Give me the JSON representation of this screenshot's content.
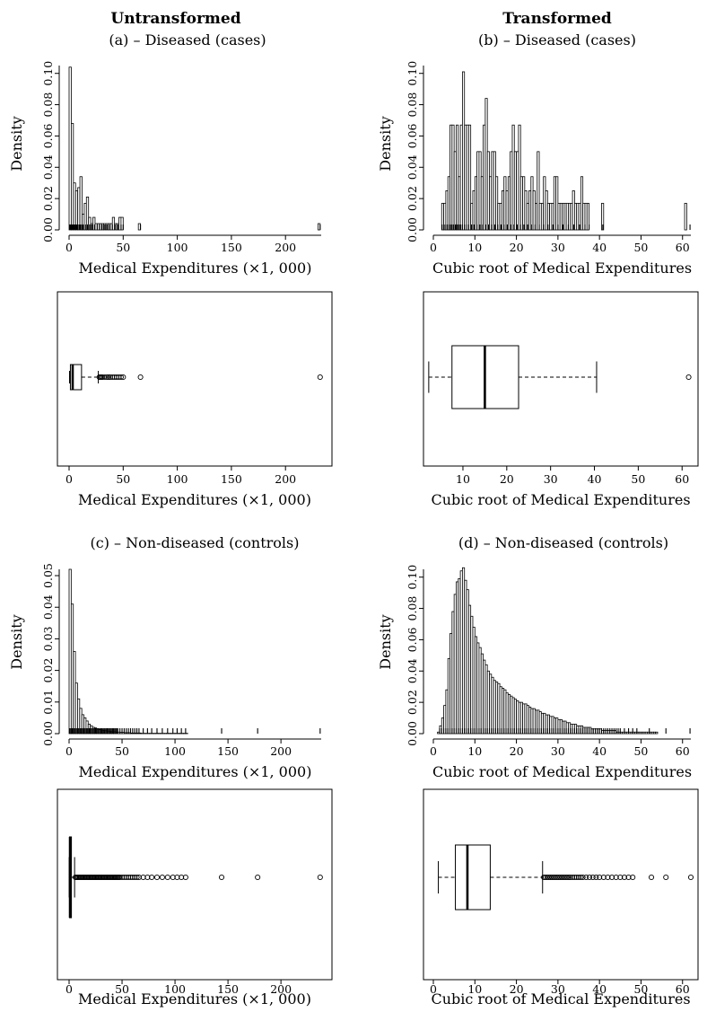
{
  "columns": {
    "left_title": "Untransformed",
    "right_title": "Transformed"
  },
  "panel_titles": {
    "a": "(a) – Diseased (cases)",
    "b": "(b) – Diseased (cases)",
    "c": "(c) – Non-diseased (controls)",
    "d": "(d) – Non-diseased (controls)"
  },
  "chart_data": [
    {
      "id": "a-hist",
      "type": "bar",
      "panel": "(a) – Diseased (cases)",
      "xlabel": "Medical Expenditures (×1, 000)",
      "ylabel": "Density",
      "xlim": [
        0,
        233
      ],
      "ylim": [
        0,
        0.105
      ],
      "xticks": [
        "0",
        "50",
        "100",
        "150",
        "200"
      ],
      "yticks": [
        "0.00",
        "0.02",
        "0.04",
        "0.06",
        "0.08",
        "0.10"
      ],
      "bin_start": 0,
      "bin_width": 2,
      "values": [
        0.104,
        0.068,
        0.03,
        0.025,
        0.027,
        0.034,
        0.01,
        0.017,
        0.021,
        0.008,
        0.004,
        0.008,
        0.004,
        0.004,
        0.004,
        0.004,
        0.004,
        0.004,
        0.004,
        0.004,
        0.008,
        0.004,
        0.004,
        0.008,
        0.008,
        0,
        0,
        0,
        0,
        0,
        0,
        0,
        0.004,
        0,
        0,
        0,
        0,
        0,
        0,
        0,
        0,
        0,
        0,
        0,
        0,
        0,
        0,
        0,
        0,
        0,
        0,
        0,
        0,
        0,
        0,
        0,
        0,
        0,
        0,
        0,
        0,
        0,
        0,
        0,
        0,
        0,
        0,
        0,
        0,
        0,
        0,
        0,
        0,
        0,
        0,
        0,
        0,
        0,
        0,
        0,
        0,
        0,
        0,
        0,
        0,
        0,
        0,
        0,
        0,
        0,
        0,
        0,
        0,
        0,
        0,
        0,
        0,
        0,
        0,
        0,
        0,
        0,
        0,
        0,
        0,
        0,
        0,
        0,
        0,
        0,
        0,
        0,
        0,
        0,
        0,
        0.004
      ],
      "rug": [
        0.5,
        1,
        1.3,
        1.8,
        2.2,
        2.7,
        3.1,
        3.6,
        4.2,
        4.8,
        5.5,
        6.3,
        7.1,
        8.0,
        9.2,
        10.4,
        11.5,
        12.8,
        14.0,
        15.5,
        17.0,
        19.0,
        21.0,
        23.5,
        26.0,
        28.0,
        30.5,
        33.0,
        35.0,
        37.5,
        40.0,
        42.5,
        45.0,
        48.0,
        50.0,
        66.0,
        232.0
      ]
    },
    {
      "id": "a-box",
      "type": "box",
      "xlabel": "Medical Expenditures (×1, 000)",
      "xlim": [
        0,
        233
      ],
      "xticks": [
        "0",
        "50",
        "100",
        "150",
        "200"
      ],
      "stats": {
        "whisker_low": 0.4,
        "q1": 1.2,
        "median": 3.3,
        "q3": 11.5,
        "whisker_high": 27
      },
      "outliers": [
        28,
        29,
        30,
        31,
        33,
        35,
        36.5,
        38,
        40,
        42,
        44,
        46,
        48,
        50,
        66,
        232
      ]
    },
    {
      "id": "b-hist",
      "type": "bar",
      "panel": "(b) – Diseased (cases)",
      "xlabel": "Cubic root of Medical Expenditures",
      "ylabel": "Density",
      "xlim": [
        0,
        62
      ],
      "ylim": [
        0,
        0.105
      ],
      "xticks": [
        "0",
        "10",
        "20",
        "30",
        "40",
        "50",
        "60"
      ],
      "yticks": [
        "0.00",
        "0.02",
        "0.04",
        "0.06",
        "0.08",
        "0.10"
      ],
      "bin_start": 2,
      "bin_width": 0.5,
      "values": [
        0.017,
        0.017,
        0.025,
        0.034,
        0.067,
        0.067,
        0.05,
        0.067,
        0.034,
        0.067,
        0.101,
        0.067,
        0.067,
        0.067,
        0.017,
        0.025,
        0.034,
        0.05,
        0.05,
        0.034,
        0.067,
        0.084,
        0.05,
        0.034,
        0.05,
        0.05,
        0.034,
        0.017,
        0.017,
        0.025,
        0.034,
        0.025,
        0.034,
        0.05,
        0.067,
        0.05,
        0.05,
        0.067,
        0.034,
        0.034,
        0.025,
        0.017,
        0.025,
        0.034,
        0.025,
        0.017,
        0.05,
        0.017,
        0.017,
        0.034,
        0.025,
        0.017,
        0.017,
        0.017,
        0.034,
        0.034,
        0.017,
        0.017,
        0.017,
        0.017,
        0.017,
        0.017,
        0.017,
        0.025,
        0.017,
        0.017,
        0.017,
        0.034,
        0.017,
        0.017,
        0.017,
        0,
        0,
        0,
        0,
        0,
        0,
        0.017,
        0,
        0,
        0,
        0,
        0,
        0,
        0,
        0,
        0,
        0,
        0,
        0,
        0,
        0,
        0,
        0,
        0,
        0,
        0,
        0,
        0,
        0,
        0,
        0,
        0,
        0,
        0,
        0,
        0,
        0,
        0,
        0,
        0,
        0,
        0,
        0,
        0,
        0,
        0,
        0.017
      ],
      "rug": [
        2.1,
        2.6,
        3.0,
        3.4,
        3.9,
        4.3,
        4.8,
        5.3,
        5.7,
        6.2,
        6.6,
        7.0,
        7.5,
        8.0,
        8.5,
        9.2,
        9.8,
        10.5,
        11.2,
        11.9,
        12.6,
        13.3,
        14.0,
        14.8,
        15.5,
        16.3,
        17.0,
        17.8,
        18.6,
        19.4,
        20.2,
        21.0,
        21.8,
        22.7,
        23.6,
        24.5,
        25.5,
        26.5,
        27.6,
        28.8,
        30.0,
        31.2,
        32.5,
        33.8,
        35.2,
        36.5,
        37.5,
        40.8,
        61.8
      ]
    },
    {
      "id": "b-box",
      "type": "box",
      "xlabel": "Cubic root of Medical Expenditures",
      "xlim": [
        1,
        62
      ],
      "xticks": [
        "10",
        "20",
        "30",
        "40",
        "50",
        "60"
      ],
      "stats": {
        "whisker_low": 2.2,
        "q1": 7.5,
        "median": 15,
        "q3": 22.7,
        "whisker_high": 40.5
      },
      "outliers": [
        61.5
      ]
    },
    {
      "id": "c-hist",
      "type": "bar",
      "panel": "(c) – Non-diseased (controls)",
      "xlabel": "Medical Expenditures (×1, 000)",
      "ylabel": "Density",
      "xlim": [
        0,
        238
      ],
      "ylim": [
        0,
        0.052
      ],
      "xticks": [
        "0",
        "50",
        "100",
        "150",
        "200"
      ],
      "yticks": [
        "0.00",
        "0.01",
        "0.02",
        "0.03",
        "0.04",
        "0.05"
      ],
      "bin_start": 0,
      "bin_width": 2,
      "values": [
        0.052,
        0.041,
        0.026,
        0.016,
        0.011,
        0.008,
        0.006,
        0.005,
        0.004,
        0.003,
        0.0025,
        0.002,
        0.0018,
        0.0015,
        0.0013,
        0.0011,
        0.001,
        0.0009,
        0.0008,
        0.0007,
        0.0006,
        0.0006,
        0.0005,
        0.0005,
        0.0004,
        0.0004,
        0.0003,
        0.0003,
        0.0003,
        0.0002,
        0.0002,
        0.0002,
        0.0002,
        0.0002,
        0.0001,
        0.0001,
        0.0001,
        0.0001,
        0.0001,
        0.0001,
        0.0001,
        0.0001,
        0.0001,
        0.0001,
        0.0001,
        0.0001,
        0.0001,
        0.0001,
        0.0001,
        0.0001,
        0.0001,
        0.0001,
        0.0001,
        0.0001,
        0.0001,
        0.0001
      ],
      "rug": [
        0.5,
        1,
        2,
        3,
        4,
        5,
        6,
        7,
        8,
        9,
        10,
        11,
        12,
        13,
        14,
        15,
        16,
        17,
        18,
        19,
        20,
        21,
        22,
        23,
        24,
        25,
        26,
        27,
        28,
        29,
        30,
        31,
        32,
        33,
        34,
        35,
        36,
        37,
        38,
        39,
        40,
        41,
        42,
        43,
        44,
        45,
        46,
        48,
        50,
        52,
        54,
        56,
        58,
        60,
        62,
        64,
        66,
        70,
        74,
        78,
        83,
        88,
        93,
        98,
        102,
        106,
        110,
        144,
        178,
        237
      ]
    },
    {
      "id": "c-box",
      "type": "box",
      "xlabel": "Medical Expenditures (×1, 000)",
      "xlim": [
        0,
        238
      ],
      "xticks": [
        "0",
        "50",
        "100",
        "150",
        "200"
      ],
      "stats": {
        "whisker_low": 0.1,
        "q1": 0.4,
        "median": 0.9,
        "q3": 2.2,
        "whisker_high": 5.2
      },
      "outliers": [
        6,
        7,
        8,
        9,
        10,
        11,
        12,
        13,
        14,
        15,
        16,
        17,
        18,
        19,
        20,
        21,
        22,
        23,
        24,
        25,
        26,
        27,
        28,
        29,
        30,
        31,
        32,
        33,
        34,
        35,
        36,
        37,
        38,
        39,
        40,
        41,
        42,
        43,
        44,
        45,
        46,
        47,
        48,
        50,
        52,
        54,
        56,
        58,
        60,
        62,
        64,
        66,
        70,
        74,
        78,
        83,
        88,
        93,
        98,
        102,
        106,
        110,
        144,
        178,
        237
      ]
    },
    {
      "id": "d-hist",
      "type": "bar",
      "panel": "(d) – Non-diseased (controls)",
      "xlabel": "Cubic root of Medical Expenditures",
      "ylabel": "Density",
      "xlim": [
        0,
        62
      ],
      "ylim": [
        0,
        0.105
      ],
      "xticks": [
        "0",
        "10",
        "20",
        "30",
        "40",
        "50",
        "60"
      ],
      "yticks": [
        "0.00",
        "0.02",
        "0.04",
        "0.06",
        "0.08",
        "0.10"
      ],
      "bin_start": 1,
      "bin_width": 0.5,
      "values": [
        0.001,
        0.005,
        0.01,
        0.018,
        0.028,
        0.048,
        0.064,
        0.078,
        0.089,
        0.097,
        0.099,
        0.104,
        0.106,
        0.098,
        0.092,
        0.082,
        0.075,
        0.068,
        0.062,
        0.058,
        0.055,
        0.051,
        0.047,
        0.044,
        0.04,
        0.038,
        0.036,
        0.034,
        0.033,
        0.032,
        0.03,
        0.029,
        0.028,
        0.026,
        0.025,
        0.024,
        0.023,
        0.022,
        0.021,
        0.02,
        0.02,
        0.019,
        0.019,
        0.018,
        0.017,
        0.016,
        0.016,
        0.015,
        0.015,
        0.014,
        0.013,
        0.013,
        0.012,
        0.012,
        0.011,
        0.011,
        0.01,
        0.01,
        0.009,
        0.009,
        0.008,
        0.008,
        0.007,
        0.007,
        0.006,
        0.006,
        0.006,
        0.005,
        0.005,
        0.005,
        0.004,
        0.004,
        0.004,
        0.004,
        0.003,
        0.003,
        0.003,
        0.003,
        0.003,
        0.002,
        0.002,
        0.002,
        0.002,
        0.002,
        0.002,
        0.002,
        0.001,
        0.001,
        0.001,
        0.001,
        0.001,
        0.001,
        0.001,
        0.001,
        0.001,
        0.001,
        0.001,
        0.001,
        0.001,
        0.001,
        0.001,
        0.001,
        0.001,
        0.001,
        0.001,
        0.001
      ],
      "rug": [
        1.5,
        2,
        2.5,
        3,
        3.5,
        4,
        4.5,
        5,
        5.5,
        6,
        6.5,
        7,
        7.5,
        8,
        8.5,
        9,
        9.5,
        10,
        10.5,
        11,
        11.5,
        12,
        12.5,
        13,
        13.5,
        14,
        14.5,
        15,
        15.5,
        16,
        16.5,
        17,
        17.5,
        18,
        18.5,
        19,
        19.5,
        20,
        20.5,
        21,
        21.5,
        22,
        22.5,
        23,
        23.5,
        24,
        24.5,
        25,
        25.5,
        26,
        26.5,
        27,
        27.5,
        28,
        28.5,
        29,
        29.5,
        30,
        30.5,
        31,
        31.5,
        32,
        32.5,
        33,
        33.5,
        34,
        34.5,
        35,
        35.5,
        36,
        36.5,
        37,
        37.5,
        38,
        38.5,
        39,
        39.5,
        40,
        40.5,
        41,
        41.5,
        42,
        42.5,
        43,
        43.5,
        44,
        44.5,
        45,
        46,
        47,
        48,
        49,
        52,
        56,
        61.8
      ]
    },
    {
      "id": "d-box",
      "type": "box",
      "xlabel": "Cubic root of Medical Expenditures",
      "xlim": [
        0,
        62
      ],
      "xticks": [
        "0",
        "10",
        "20",
        "30",
        "40",
        "50",
        "60"
      ],
      "stats": {
        "whisker_low": 1.2,
        "q1": 5.3,
        "median": 8.2,
        "q3": 13.7,
        "whisker_high": 26.3
      },
      "outliers": [
        26.6,
        27,
        27.4,
        27.8,
        28.2,
        28.6,
        29,
        29.4,
        29.8,
        30.2,
        30.6,
        31,
        31.4,
        31.8,
        32.2,
        32.6,
        33,
        33.5,
        34,
        34.5,
        35,
        35.5,
        36,
        36.8,
        37.6,
        38.4,
        39.2,
        40,
        41,
        42,
        43,
        44,
        45,
        46,
        47,
        48,
        52.5,
        56,
        62
      ]
    }
  ]
}
